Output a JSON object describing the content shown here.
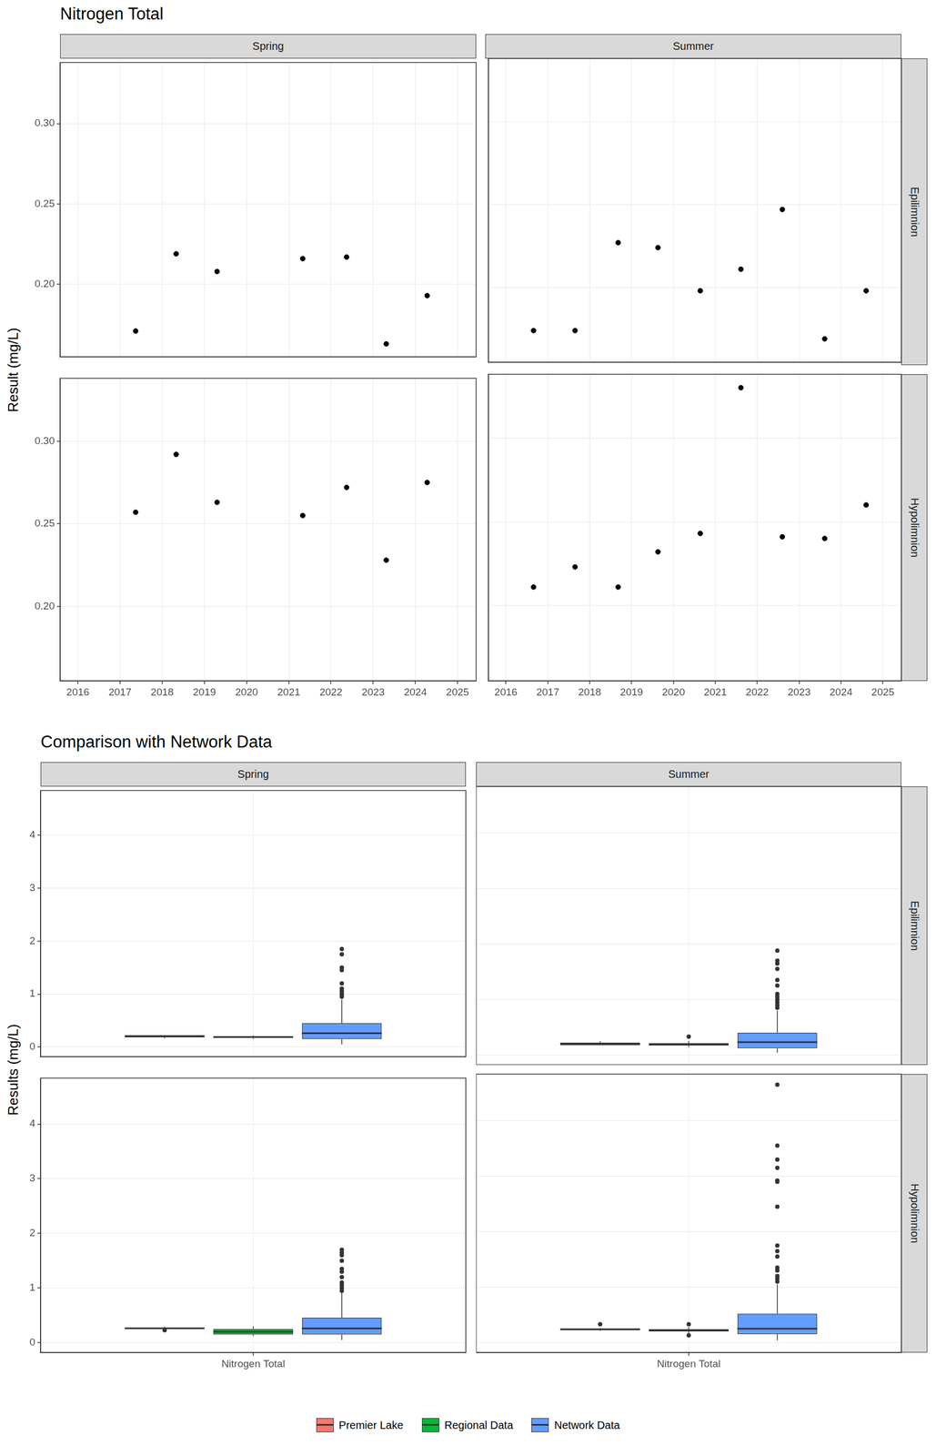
{
  "chart_data": [
    {
      "type": "scatter",
      "title": "Nitrogen Total",
      "y_label": "Result (mg/L)",
      "columns": [
        "Spring",
        "Summer"
      ],
      "rows": [
        "Epilimnion",
        "Hypolimnion"
      ],
      "xlim": [
        2015.58,
        2025.44
      ],
      "xticks": [
        2016,
        2017,
        2018,
        2019,
        2020,
        2021,
        2022,
        2023,
        2024,
        2025
      ],
      "ylim": [
        0.155,
        0.338
      ],
      "yticks": [
        {
          "value": 0.2,
          "label": "0.20"
        },
        {
          "value": 0.25,
          "label": "0.25"
        },
        {
          "value": 0.3,
          "label": "0.30"
        }
      ],
      "grid": true,
      "color": "#000000",
      "marker": "circle",
      "panels": [
        {
          "column": "Spring",
          "row": "Epilimnion",
          "x": [
            2017.37,
            2018.33,
            2019.3,
            2021.33,
            2022.37,
            2023.31,
            2024.28
          ],
          "values": [
            0.171,
            0.219,
            0.208,
            0.216,
            0.217,
            0.163,
            0.193
          ]
        },
        {
          "column": "Summer",
          "row": "Epilimnion",
          "x": [
            2016.66,
            2017.65,
            2018.68,
            2019.63,
            2020.64,
            2021.61,
            2022.6,
            2023.61,
            2024.6
          ],
          "values": [
            0.174,
            0.174,
            0.227,
            0.224,
            0.198,
            0.211,
            0.247,
            0.169,
            0.198
          ]
        },
        {
          "column": "Spring",
          "row": "Hypolimnion",
          "x": [
            2017.37,
            2018.33,
            2019.3,
            2021.33,
            2022.37,
            2023.31,
            2024.28
          ],
          "values": [
            0.257,
            0.292,
            0.263,
            0.255,
            0.272,
            0.228,
            0.275
          ]
        },
        {
          "column": "Summer",
          "row": "Hypolimnion",
          "x": [
            2016.66,
            2017.65,
            2018.68,
            2019.63,
            2020.64,
            2021.61,
            2022.6,
            2023.61,
            2024.6
          ],
          "values": [
            0.211,
            0.223,
            0.211,
            0.232,
            0.243,
            0.33,
            0.241,
            0.24,
            0.26
          ]
        }
      ]
    },
    {
      "type": "boxplot",
      "title": "Comparison with Network Data",
      "y_label": "Results (mg/L)",
      "columns": [
        "Spring",
        "Summer"
      ],
      "rows": [
        "Epilimnion",
        "Hypolimnion"
      ],
      "categories": [
        "Nitrogen Total"
      ],
      "ylim": [
        -0.18,
        4.84
      ],
      "yticks": [
        0,
        1,
        2,
        3,
        4
      ],
      "grid": true,
      "legend": "bottom",
      "panels": [
        {
          "column": "Spring",
          "row": "Epilimnion",
          "series": [
            {
              "name": "Premier Lake",
              "color": "#F8766D",
              "min": 0.163,
              "q1": 0.182,
              "median": 0.208,
              "q3": 0.216,
              "max": 0.219,
              "outliers": []
            },
            {
              "name": "Regional Data",
              "color": "#00BA38",
              "min": 0.15,
              "q1": 0.17,
              "median": 0.19,
              "q3": 0.2,
              "max": 0.22,
              "outliers": []
            },
            {
              "name": "Network Data",
              "color": "#619CFF",
              "min": 0.05,
              "q1": 0.15,
              "median": 0.26,
              "q3": 0.45,
              "max": 0.9,
              "outliers": [
                0.95,
                1.0,
                1.05,
                1.1,
                1.2,
                1.45,
                1.5,
                1.75,
                1.85
              ]
            }
          ]
        },
        {
          "column": "Summer",
          "row": "Epilimnion",
          "series": [
            {
              "name": "Premier Lake",
              "color": "#F8766D",
              "min": 0.169,
              "q1": 0.174,
              "median": 0.198,
              "q3": 0.224,
              "max": 0.247,
              "outliers": []
            },
            {
              "name": "Regional Data",
              "color": "#00BA38",
              "min": 0.14,
              "q1": 0.17,
              "median": 0.19,
              "q3": 0.21,
              "max": 0.25,
              "outliers": [
                0.33
              ]
            },
            {
              "name": "Network Data",
              "color": "#619CFF",
              "min": 0.04,
              "q1": 0.12,
              "median": 0.23,
              "q3": 0.4,
              "max": 0.8,
              "outliers": [
                0.85,
                0.9,
                0.95,
                1.0,
                1.05,
                1.1,
                1.25,
                1.35,
                1.55,
                1.65,
                1.7,
                1.88
              ]
            }
          ]
        },
        {
          "column": "Spring",
          "row": "Hypolimnion",
          "series": [
            {
              "name": "Premier Lake",
              "color": "#F8766D",
              "min": 0.255,
              "q1": 0.256,
              "median": 0.263,
              "q3": 0.274,
              "max": 0.292,
              "outliers": [
                0.228
              ]
            },
            {
              "name": "Regional Data",
              "color": "#00BA38",
              "min": 0.12,
              "q1": 0.15,
              "median": 0.2,
              "q3": 0.25,
              "max": 0.3,
              "outliers": []
            },
            {
              "name": "Network Data",
              "color": "#619CFF",
              "min": 0.05,
              "q1": 0.15,
              "median": 0.26,
              "q3": 0.46,
              "max": 0.92,
              "outliers": [
                0.95,
                1.0,
                1.05,
                1.1,
                1.2,
                1.3,
                1.35,
                1.5,
                1.6,
                1.65,
                1.7
              ]
            }
          ]
        },
        {
          "column": "Summer",
          "row": "Hypolimnion",
          "series": [
            {
              "name": "Premier Lake",
              "color": "#F8766D",
              "min": 0.211,
              "q1": 0.223,
              "median": 0.24,
              "q3": 0.243,
              "max": 0.26,
              "outliers": [
                0.33
              ]
            },
            {
              "name": "Regional Data",
              "color": "#00BA38",
              "min": 0.17,
              "q1": 0.2,
              "median": 0.22,
              "q3": 0.24,
              "max": 0.28,
              "outliers": [
                0.13,
                0.33
              ]
            },
            {
              "name": "Network Data",
              "color": "#619CFF",
              "min": 0.04,
              "q1": 0.15,
              "median": 0.25,
              "q3": 0.52,
              "max": 1.05,
              "outliers": [
                1.1,
                1.15,
                1.2,
                1.3,
                1.35,
                1.55,
                1.65,
                1.75,
                2.45,
                2.9,
                2.92,
                3.15,
                3.3,
                3.55,
                4.65
              ]
            }
          ]
        }
      ]
    }
  ]
}
